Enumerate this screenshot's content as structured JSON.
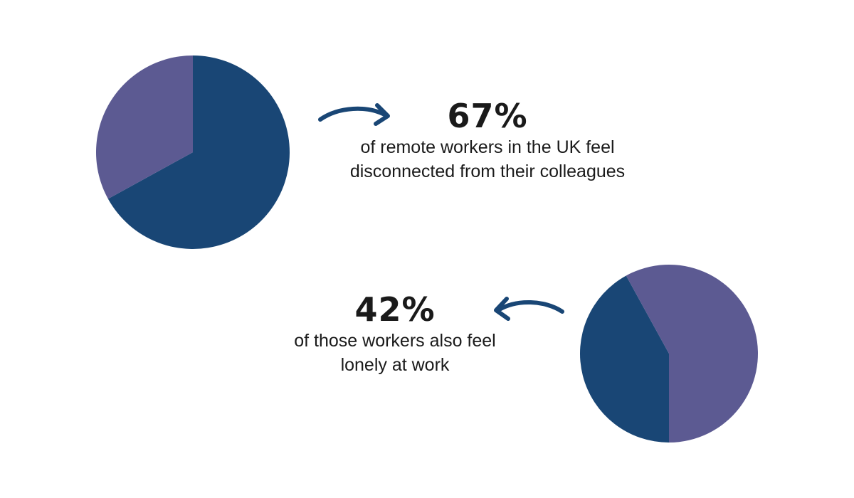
{
  "colors": {
    "primary": "#194675",
    "secondary": "#5c5a92",
    "text": "#1a1a1a",
    "background": "#ffffff"
  },
  "stats": [
    {
      "value": "67%",
      "description": "of remote workers in the UK feel disconnected from their colleagues"
    },
    {
      "value": "42%",
      "description": "of those workers also feel lonely at work"
    }
  ],
  "chart_data": [
    {
      "type": "pie",
      "values": [
        67,
        33
      ],
      "colors": [
        "#194675",
        "#5c5a92"
      ],
      "start_angle_deg": 0,
      "direction": "clockwise"
    },
    {
      "type": "pie",
      "values": [
        42,
        58
      ],
      "colors": [
        "#194675",
        "#5c5a92"
      ],
      "start_angle_deg": 180,
      "direction": "clockwise"
    }
  ]
}
